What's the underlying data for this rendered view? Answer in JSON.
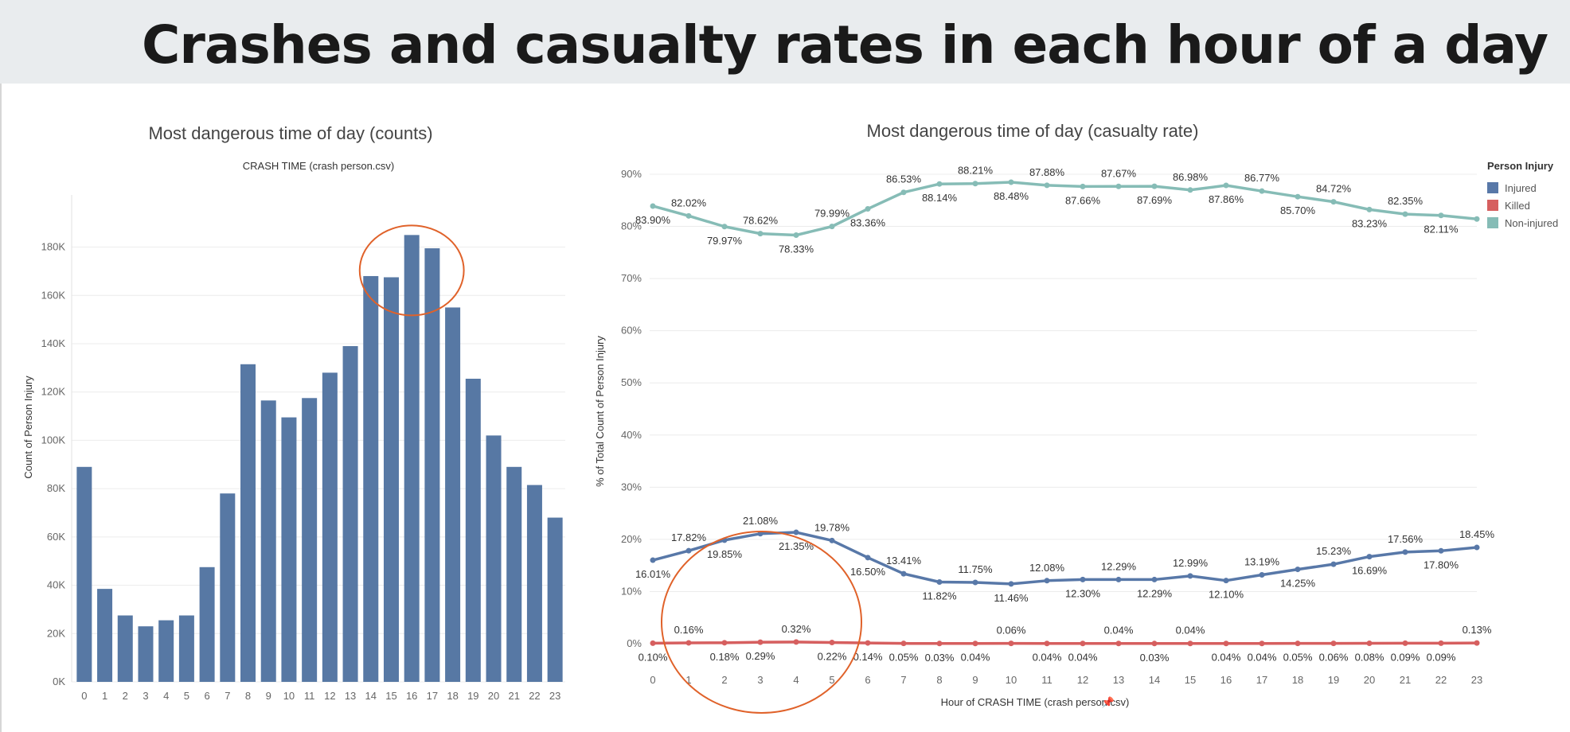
{
  "page_title": "Crashes and casualty rates in each hour of a day",
  "chart_data": [
    {
      "type": "bar",
      "title": "Most dangerous time of day (counts)",
      "subtitle": "CRASH TIME (crash person.csv)",
      "xlabel": "",
      "ylabel": "Count of Person Injury",
      "categories": [
        "0",
        "1",
        "2",
        "3",
        "4",
        "5",
        "6",
        "7",
        "8",
        "9",
        "10",
        "11",
        "12",
        "13",
        "14",
        "15",
        "16",
        "17",
        "18",
        "19",
        "20",
        "21",
        "22",
        "23"
      ],
      "values": [
        89000,
        38500,
        27500,
        23000,
        25500,
        27500,
        47500,
        78000,
        131500,
        116500,
        109500,
        117500,
        128000,
        139000,
        168000,
        167500,
        185000,
        179500,
        155000,
        125500,
        102000,
        89000,
        81500,
        68000
      ],
      "yticks": [
        "0K",
        "20K",
        "40K",
        "60K",
        "80K",
        "100K",
        "120K",
        "140K",
        "160K",
        "180K"
      ],
      "ylim": [
        0,
        195000
      ],
      "bar_color": "#5778a4",
      "annotation": {
        "shape": "ellipse",
        "color": "#e0622a",
        "around_categories": [
          "14",
          "15",
          "16",
          "17",
          "18"
        ]
      }
    },
    {
      "type": "line",
      "title": "Most dangerous time of day (casualty rate)",
      "xlabel": "Hour of CRASH TIME (crash person.csv)",
      "ylabel": "% of Total Count of Person Injury",
      "x": [
        0,
        1,
        2,
        3,
        4,
        5,
        6,
        7,
        8,
        9,
        10,
        11,
        12,
        13,
        14,
        15,
        16,
        17,
        18,
        19,
        20,
        21,
        22,
        23
      ],
      "yticks": [
        "0%",
        "10%",
        "20%",
        "30%",
        "40%",
        "50%",
        "60%",
        "70%",
        "80%",
        "90%"
      ],
      "ylim": [
        0,
        90
      ],
      "legend_title": "Person Injury",
      "legend_position": "top-right",
      "series": [
        {
          "name": "Injured",
          "color": "#5878a8",
          "values": [
            16.01,
            17.82,
            19.85,
            21.08,
            21.35,
            19.78,
            16.5,
            13.41,
            11.82,
            11.75,
            11.46,
            12.08,
            12.3,
            12.29,
            12.29,
            12.99,
            12.1,
            13.19,
            14.25,
            15.23,
            16.69,
            17.56,
            17.8,
            18.45
          ],
          "labels": [
            "16.01%",
            "17.82%",
            "19.85%",
            "21.08%",
            "21.35%",
            "19.78%",
            "16.50%",
            "13.41%",
            "11.82%",
            "11.75%",
            "11.46%",
            "12.08%",
            "12.30%",
            "12.29%",
            "12.29%",
            "12.99%",
            "12.10%",
            "13.19%",
            "14.25%",
            "15.23%",
            "16.69%",
            "17.56%",
            "17.80%",
            "18.45%"
          ]
        },
        {
          "name": "Killed",
          "color": "#d65f5f",
          "values": [
            0.1,
            0.16,
            0.18,
            0.29,
            0.32,
            0.22,
            0.14,
            0.05,
            0.03,
            0.04,
            0.06,
            0.04,
            0.04,
            0.04,
            0.03,
            0.04,
            0.04,
            0.04,
            0.05,
            0.06,
            0.08,
            0.09,
            0.09,
            0.13
          ],
          "labels": [
            "0.10%",
            "0.16%",
            "0.18%",
            "0.29%",
            "0.32%",
            "0.22%",
            "0.14%",
            "0.05%",
            "0.03%",
            "0.04%",
            "0.06%",
            "0.04%",
            "0.04%",
            "0.04%",
            "0.03%",
            "0.04%",
            "0.04%",
            "0.04%",
            "0.05%",
            "0.06%",
            "0.08%",
            "0.09%",
            "0.09%",
            "0.13%"
          ]
        },
        {
          "name": "Non-injured",
          "color": "#86bcb6",
          "values": [
            83.9,
            82.02,
            79.97,
            78.62,
            78.33,
            79.99,
            83.36,
            86.53,
            88.14,
            88.21,
            88.48,
            87.88,
            87.66,
            87.67,
            87.69,
            86.98,
            87.86,
            86.77,
            85.7,
            84.72,
            83.23,
            82.35,
            82.11,
            81.42
          ],
          "labels": [
            "83.90%",
            "82.02%",
            "79.97%",
            "78.62%",
            "78.33%",
            "79.99%",
            "83.36%",
            "86.53%",
            "88.14%",
            "88.21%",
            "88.48%",
            "87.88%",
            "87.66%",
            "87.67%",
            "87.69%",
            "86.98%",
            "87.86%",
            "86.77%",
            "85.70%",
            "84.72%",
            "83.23%",
            "82.35%",
            "82.11%",
            ""
          ]
        }
      ],
      "annotation": {
        "shape": "ellipse",
        "color": "#e0622a",
        "around_x": [
          1,
          6
        ]
      }
    }
  ]
}
